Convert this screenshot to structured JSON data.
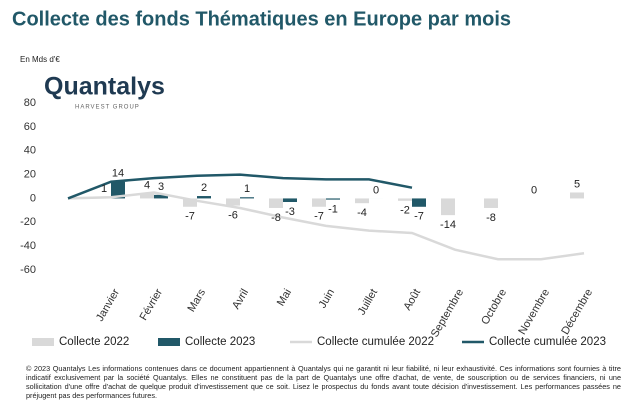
{
  "chart_data": {
    "type": "bar",
    "title": "Collecte des fonds Thématiques en Europe par mois",
    "y_label": "En Mds d'€",
    "categories": [
      null,
      "Janvier",
      "Février",
      "Mars",
      "Avril",
      "Mai",
      "Juin",
      "Juillet",
      "Août",
      "Septembre",
      "Octobre",
      "Novembre",
      "Décembre"
    ],
    "series": [
      {
        "name": "Collecte 2022",
        "kind": "bar",
        "color": "#d9d9d9",
        "values": [
          null,
          1,
          4,
          -7,
          -6,
          -8,
          -7,
          -4,
          -2,
          -14,
          -8,
          0,
          5
        ]
      },
      {
        "name": "Collecte 2023",
        "kind": "bar",
        "color": "#215868",
        "values": [
          null,
          14,
          3,
          2,
          1,
          -3,
          -1,
          0,
          -7,
          null,
          null,
          null,
          null
        ]
      },
      {
        "name": "Collecte cumulée 2022",
        "kind": "line",
        "color": "#d9d9d9",
        "values": [
          0,
          1,
          5,
          -2,
          -8,
          -16,
          -23,
          -27,
          -29,
          -43,
          -51,
          -51,
          -46
        ]
      },
      {
        "name": "Collecte cumulée 2023",
        "kind": "line",
        "color": "#215868",
        "values": [
          0,
          14,
          17,
          19,
          20,
          17,
          16,
          16,
          9,
          null,
          null,
          null,
          null
        ]
      }
    ],
    "ylim": [
      -60,
      80
    ],
    "yticks": [
      -60,
      -40,
      -20,
      0,
      20,
      40,
      60,
      80
    ],
    "legend": "bottom"
  },
  "logo": {
    "name": "Quantalys",
    "tagline": "HARVEST GROUP"
  },
  "footer": "© 2023 Quantalys Les informations contenues dans ce document appartiennent à Quantalys qui ne garantit ni leur fiabilité, ni leur exhaustivité. Ces informations sont fournies à titre indicatif exclusivement par la société Quantalys. Elles ne constituent pas de la part de Quantalys une offre d'achat, de vente, de souscription ou de services financiers, ni une sollicitation d'une offre d'achat de quelque produit d'investissement que ce soit. Lisez le prospectus du fonds avant toute décision d'investissement. Les performances passées ne préjugent pas des performances futures."
}
